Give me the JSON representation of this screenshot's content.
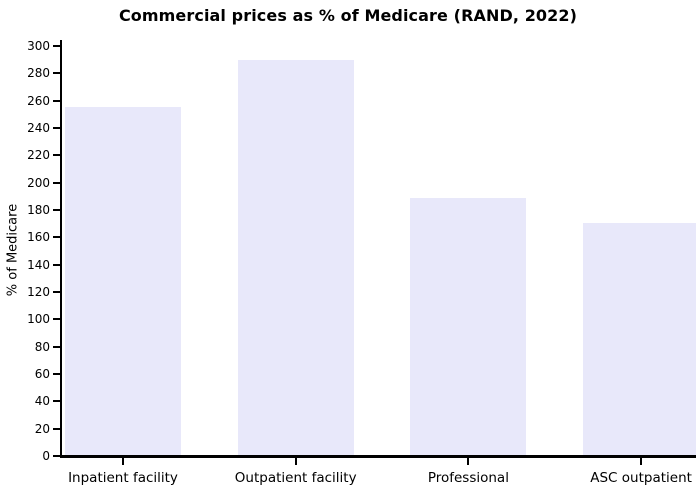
{
  "chart_data": {
    "type": "bar",
    "title": "Commercial prices as % of Medicare (RAND, 2022)",
    "xlabel": "",
    "ylabel": "% of Medicare",
    "categories": [
      "Inpatient facility",
      "Outpatient facility",
      "Professional",
      "ASC outpatient"
    ],
    "values": [
      255,
      289,
      188,
      170
    ],
    "ylim": [
      0,
      300
    ],
    "ytick_step": 20,
    "grid": false,
    "legend": "none",
    "bar_color": "#e8e8fa",
    "axis_color": "#000000",
    "text_color": "#000000"
  }
}
